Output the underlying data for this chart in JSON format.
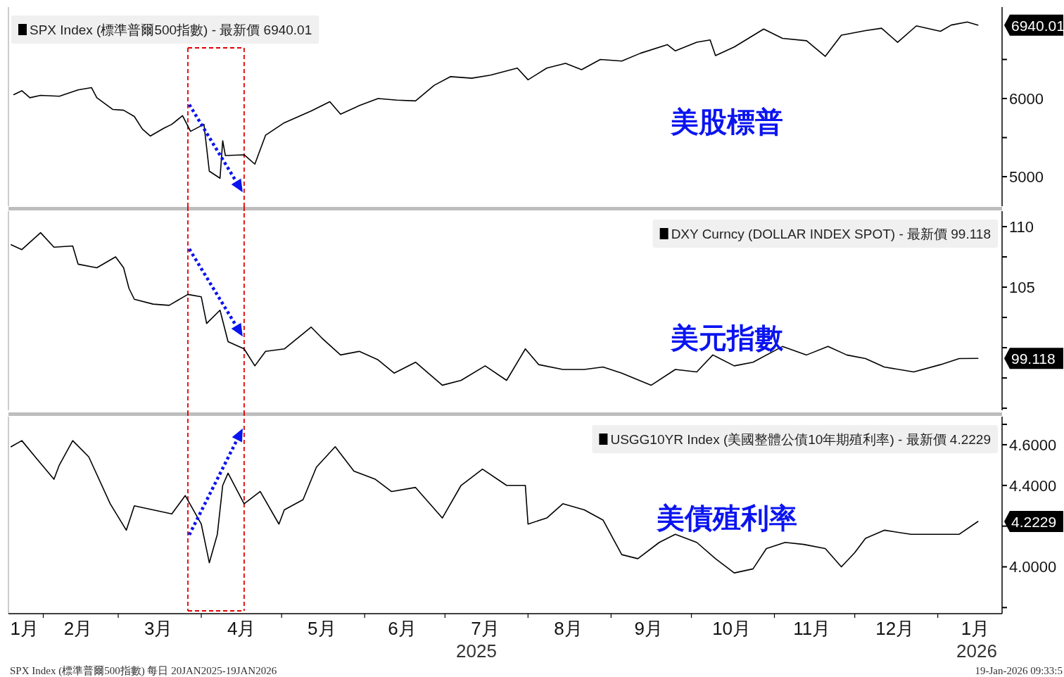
{
  "chart_data": [
    {
      "type": "line",
      "xlim": [
        "2025-01-19",
        "2026-01-25"
      ],
      "ylim": [
        4622,
        7171
      ],
      "yticks": [
        5000,
        {
          "value": 5500,
          "label": null
        },
        6000,
        {
          "value": 6500,
          "label": null
        }
      ],
      "tick_labels": "y",
      "legend": "top left",
      "series": [
        {
          "name": "SPX Index (標準普爾500指數) - 最新價 6940.01",
          "color": "#000000",
          "x": [
            "2025-01-21",
            "2025-01-24",
            "2025-01-27",
            "2025-01-31",
            "2025-02-07",
            "2025-02-14",
            "2025-02-19",
            "2025-02-21",
            "2025-02-27",
            "2025-03-03",
            "2025-03-07",
            "2025-03-10",
            "2025-03-13",
            "2025-03-18",
            "2025-03-21",
            "2025-03-25",
            "2025-03-28",
            "2025-04-02",
            "2025-04-04",
            "2025-04-08",
            "2025-04-09",
            "2025-04-10",
            "2025-04-17",
            "2025-04-21",
            "2025-04-25",
            "2025-05-02",
            "2025-05-12",
            "2025-05-19",
            "2025-05-23",
            "2025-05-30",
            "2025-06-06",
            "2025-06-13",
            "2025-06-20",
            "2025-06-27",
            "2025-07-03",
            "2025-07-11",
            "2025-07-18",
            "2025-07-28",
            "2025-08-01",
            "2025-08-08",
            "2025-08-15",
            "2025-08-21",
            "2025-08-28",
            "2025-09-05",
            "2025-09-12",
            "2025-09-22",
            "2025-09-25",
            "2025-10-03",
            "2025-10-08",
            "2025-10-10",
            "2025-10-17",
            "2025-10-28",
            "2025-11-04",
            "2025-11-13",
            "2025-11-20",
            "2025-11-26",
            "2025-12-05",
            "2025-12-11",
            "2025-12-17",
            "2025-12-24",
            "2026-01-02",
            "2026-01-06",
            "2026-01-12",
            "2026-01-16"
          ],
          "values": [
            6050,
            6100,
            6010,
            6040,
            6030,
            6110,
            6140,
            6010,
            5860,
            5850,
            5770,
            5610,
            5520,
            5620,
            5670,
            5780,
            5580,
            5670,
            5070,
            4980,
            5460,
            5270,
            5280,
            5160,
            5530,
            5690,
            5840,
            5960,
            5800,
            5910,
            6000,
            5980,
            5970,
            6170,
            6280,
            6260,
            6300,
            6390,
            6240,
            6390,
            6450,
            6370,
            6500,
            6480,
            6580,
            6690,
            6610,
            6720,
            6750,
            6550,
            6660,
            6890,
            6770,
            6740,
            6540,
            6810,
            6870,
            6900,
            6720,
            6930,
            6860,
            6940,
            6980,
            6940.01
          ]
        }
      ],
      "ref_lines": [
        {
          "axis": "x",
          "value": "2025-03-27",
          "color": "#e00000",
          "line_style": "dashed"
        },
        {
          "axis": "x",
          "value": "2025-04-17",
          "color": "#e00000",
          "line_style": "dashed"
        }
      ],
      "annotations": [
        "美股標普",
        "6940.01"
      ]
    },
    {
      "type": "line",
      "xlim": [
        "2025-01-19",
        "2026-01-25"
      ],
      "ylim": [
        94.83,
        111.28
      ],
      "yticks": [
        {
          "value": 95,
          "label": null
        },
        {
          "value": 97.5,
          "label": null
        },
        {
          "value": 100,
          "label": null
        },
        {
          "value": 102.5,
          "label": null
        },
        105,
        {
          "value": 107.5,
          "label": null
        },
        110
      ],
      "tick_labels": "y",
      "legend": "top right",
      "series": [
        {
          "name": "DXY Curncy (DOLLAR INDEX SPOT) - 最新價 99.118",
          "color": "#000000",
          "x": [
            "2025-01-20",
            "2025-01-24",
            "2025-01-31",
            "2025-02-05",
            "2025-02-12",
            "2025-02-14",
            "2025-02-21",
            "2025-02-28",
            "2025-03-03",
            "2025-03-05",
            "2025-03-07",
            "2025-03-14",
            "2025-03-20",
            "2025-03-27",
            "2025-04-01",
            "2025-04-03",
            "2025-04-08",
            "2025-04-11",
            "2025-04-17",
            "2025-04-21",
            "2025-04-25",
            "2025-05-02",
            "2025-05-12",
            "2025-05-16",
            "2025-05-23",
            "2025-05-30",
            "2025-06-06",
            "2025-06-12",
            "2025-06-20",
            "2025-06-30",
            "2025-07-07",
            "2025-07-16",
            "2025-07-24",
            "2025-07-31",
            "2025-08-05",
            "2025-08-14",
            "2025-08-22",
            "2025-08-29",
            "2025-09-05",
            "2025-09-16",
            "2025-09-25",
            "2025-10-03",
            "2025-10-09",
            "2025-10-17",
            "2025-10-24",
            "2025-11-04",
            "2025-11-13",
            "2025-11-21",
            "2025-11-28",
            "2025-12-05",
            "2025-12-12",
            "2025-12-23",
            "2026-01-02",
            "2026-01-09",
            "2026-01-16"
          ],
          "values": [
            108.5,
            108.1,
            109.5,
            108.3,
            108.4,
            106.9,
            106.6,
            107.5,
            106.6,
            104.9,
            104.0,
            103.6,
            103.5,
            104.4,
            104.2,
            102.0,
            103.1,
            100.5,
            99.9,
            98.5,
            99.7,
            99.9,
            101.7,
            100.8,
            99.4,
            99.7,
            99.0,
            97.9,
            98.8,
            96.9,
            97.3,
            98.5,
            97.3,
            99.9,
            98.6,
            98.2,
            98.2,
            98.4,
            97.9,
            96.9,
            98.2,
            98.0,
            99.4,
            98.5,
            98.8,
            100.1,
            99.4,
            100.1,
            99.4,
            99.1,
            98.4,
            98.0,
            98.6,
            99.1,
            99.118
          ]
        }
      ],
      "ref_lines": [
        {
          "axis": "x",
          "value": "2025-03-27",
          "color": "#e00000",
          "line_style": "dashed"
        },
        {
          "axis": "x",
          "value": "2025-04-17",
          "color": "#e00000",
          "line_style": "dashed"
        }
      ],
      "annotations": [
        "美元指數",
        "99.118"
      ]
    },
    {
      "type": "line",
      "xlim": [
        "2025-01-19",
        "2026-01-25"
      ],
      "ylim": [
        3.77,
        4.738
      ],
      "yticks": [
        {
          "value": 3.8,
          "label": null
        },
        {
          "value": 4.0,
          "label": "4.0000"
        },
        {
          "value": 4.2,
          "label": null
        },
        {
          "value": 4.4,
          "label": "4.4000"
        },
        {
          "value": 4.6,
          "label": "4.6000"
        },
        {
          "value": 4.7,
          "label": null
        }
      ],
      "legend": "top right",
      "xticks": [
        {
          "value": "2025-01-25",
          "label": "1月"
        },
        {
          "value": "2025-02-01",
          "label": null
        },
        {
          "value": "2025-02-14",
          "label": "2月"
        },
        {
          "value": "2025-03-01",
          "label": null
        },
        {
          "value": "2025-03-16",
          "label": "3月"
        },
        {
          "value": "2025-04-01",
          "label": null
        },
        {
          "value": "2025-04-16",
          "label": "4月"
        },
        {
          "value": "2025-05-01",
          "label": null
        },
        {
          "value": "2025-05-16",
          "label": "5月"
        },
        {
          "value": "2025-06-01",
          "label": null
        },
        {
          "value": "2025-06-15",
          "label": "6月"
        },
        {
          "value": "2025-07-01",
          "label": null
        },
        {
          "value": "2025-07-16",
          "label": "7月"
        },
        {
          "value": "2025-08-01",
          "label": null
        },
        {
          "value": "2025-08-16",
          "label": "8月"
        },
        {
          "value": "2025-09-01",
          "label": null
        },
        {
          "value": "2025-09-15",
          "label": "9月"
        },
        {
          "value": "2025-10-01",
          "label": null
        },
        {
          "value": "2025-10-16",
          "label": "10月"
        },
        {
          "value": "2025-11-01",
          "label": null
        },
        {
          "value": "2025-11-15",
          "label": "11月"
        },
        {
          "value": "2025-12-01",
          "label": null
        },
        {
          "value": "2025-12-16",
          "label": "12月"
        },
        {
          "value": "2026-01-01",
          "label": null
        },
        {
          "value": "2026-01-15",
          "label": "1月"
        }
      ],
      "series": [
        {
          "name": "USGG10YR Index (美國整體公債10年期殖利率) - 最新價 4.2229",
          "color": "#000000",
          "x": [
            "2025-01-20",
            "2025-01-24",
            "2025-01-29",
            "2025-02-05",
            "2025-02-07",
            "2025-02-12",
            "2025-02-18",
            "2025-02-26",
            "2025-03-04",
            "2025-03-07",
            "2025-03-14",
            "2025-03-21",
            "2025-03-26",
            "2025-04-01",
            "2025-04-04",
            "2025-04-07",
            "2025-04-09",
            "2025-04-11",
            "2025-04-17",
            "2025-04-23",
            "2025-04-30",
            "2025-05-02",
            "2025-05-09",
            "2025-05-14",
            "2025-05-21",
            "2025-05-28",
            "2025-06-05",
            "2025-06-11",
            "2025-06-20",
            "2025-06-30",
            "2025-07-07",
            "2025-07-15",
            "2025-07-24",
            "2025-07-31",
            "2025-08-01",
            "2025-08-08",
            "2025-08-14",
            "2025-08-22",
            "2025-08-29",
            "2025-09-05",
            "2025-09-11",
            "2025-09-19",
            "2025-09-25",
            "2025-10-03",
            "2025-10-10",
            "2025-10-17",
            "2025-10-24",
            "2025-10-29",
            "2025-11-05",
            "2025-11-12",
            "2025-11-20",
            "2025-11-26",
            "2025-12-01",
            "2025-12-05",
            "2025-12-12",
            "2025-12-22",
            "2025-12-31",
            "2026-01-09",
            "2026-01-16"
          ],
          "values": [
            4.59,
            4.62,
            4.54,
            4.43,
            4.5,
            4.62,
            4.54,
            4.31,
            4.18,
            4.3,
            4.28,
            4.26,
            4.35,
            4.21,
            4.02,
            4.16,
            4.4,
            4.46,
            4.31,
            4.37,
            4.21,
            4.28,
            4.33,
            4.49,
            4.59,
            4.47,
            4.43,
            4.37,
            4.39,
            4.24,
            4.4,
            4.48,
            4.4,
            4.4,
            4.21,
            4.24,
            4.31,
            4.28,
            4.23,
            4.06,
            4.04,
            4.12,
            4.16,
            4.12,
            4.04,
            3.97,
            3.99,
            4.09,
            4.12,
            4.11,
            4.09,
            4.0,
            4.07,
            4.14,
            4.18,
            4.16,
            4.16,
            4.16,
            4.2229
          ]
        }
      ],
      "ref_lines": [
        {
          "axis": "x",
          "value": "2025-03-27",
          "color": "#e00000",
          "line_style": "dashed"
        },
        {
          "axis": "x",
          "value": "2025-04-17",
          "color": "#e00000",
          "line_style": "dashed"
        }
      ],
      "annotations": [
        "美債殖利率",
        "4.2229",
        "2025",
        "2026",
        "SPX Index (標準普爾500指數) 每日 20JAN2025-19JAN2026",
        "19-Jan-2026 09:33:5"
      ]
    }
  ]
}
